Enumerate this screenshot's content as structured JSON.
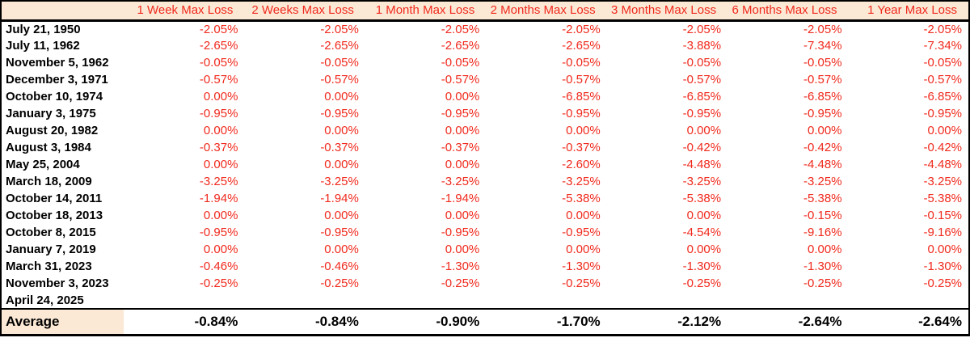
{
  "colors": {
    "header_bg": "#fbe9d6",
    "loss_text": "#f02a1d",
    "border": "#000000"
  },
  "table": {
    "columns": [
      "1 Week Max Loss",
      "2 Weeks Max Loss",
      "1 Month Max Loss",
      "2 Months Max Loss",
      "3 Months Max Loss",
      "6 Months Max Loss",
      "1 Year Max Loss"
    ],
    "rows": [
      {
        "date": "July 21, 1950",
        "values": [
          "-2.05%",
          "-2.05%",
          "-2.05%",
          "-2.05%",
          "-2.05%",
          "-2.05%",
          "-2.05%"
        ]
      },
      {
        "date": "July 11, 1962",
        "values": [
          "-2.65%",
          "-2.65%",
          "-2.65%",
          "-2.65%",
          "-3.88%",
          "-7.34%",
          "-7.34%"
        ]
      },
      {
        "date": "November 5, 1962",
        "values": [
          "-0.05%",
          "-0.05%",
          "-0.05%",
          "-0.05%",
          "-0.05%",
          "-0.05%",
          "-0.05%"
        ]
      },
      {
        "date": "December 3, 1971",
        "values": [
          "-0.57%",
          "-0.57%",
          "-0.57%",
          "-0.57%",
          "-0.57%",
          "-0.57%",
          "-0.57%"
        ]
      },
      {
        "date": "October 10, 1974",
        "values": [
          "0.00%",
          "0.00%",
          "0.00%",
          "-6.85%",
          "-6.85%",
          "-6.85%",
          "-6.85%"
        ]
      },
      {
        "date": "January 3, 1975",
        "values": [
          "-0.95%",
          "-0.95%",
          "-0.95%",
          "-0.95%",
          "-0.95%",
          "-0.95%",
          "-0.95%"
        ]
      },
      {
        "date": "August 20, 1982",
        "values": [
          "0.00%",
          "0.00%",
          "0.00%",
          "0.00%",
          "0.00%",
          "0.00%",
          "0.00%"
        ]
      },
      {
        "date": "August 3, 1984",
        "values": [
          "-0.37%",
          "-0.37%",
          "-0.37%",
          "-0.37%",
          "-0.42%",
          "-0.42%",
          "-0.42%"
        ]
      },
      {
        "date": "May 25, 2004",
        "values": [
          "0.00%",
          "0.00%",
          "0.00%",
          "-2.60%",
          "-4.48%",
          "-4.48%",
          "-4.48%"
        ]
      },
      {
        "date": "March 18, 2009",
        "values": [
          "-3.25%",
          "-3.25%",
          "-3.25%",
          "-3.25%",
          "-3.25%",
          "-3.25%",
          "-3.25%"
        ]
      },
      {
        "date": "October 14, 2011",
        "values": [
          "-1.94%",
          "-1.94%",
          "-1.94%",
          "-5.38%",
          "-5.38%",
          "-5.38%",
          "-5.38%"
        ]
      },
      {
        "date": "October 18, 2013",
        "values": [
          "0.00%",
          "0.00%",
          "0.00%",
          "0.00%",
          "0.00%",
          "-0.15%",
          "-0.15%"
        ]
      },
      {
        "date": "October 8, 2015",
        "values": [
          "-0.95%",
          "-0.95%",
          "-0.95%",
          "-0.95%",
          "-4.54%",
          "-9.16%",
          "-9.16%"
        ]
      },
      {
        "date": "January 7, 2019",
        "values": [
          "0.00%",
          "0.00%",
          "0.00%",
          "0.00%",
          "0.00%",
          "0.00%",
          "0.00%"
        ]
      },
      {
        "date": "March 31, 2023",
        "values": [
          "-0.46%",
          "-0.46%",
          "-1.30%",
          "-1.30%",
          "-1.30%",
          "-1.30%",
          "-1.30%"
        ]
      },
      {
        "date": "November 3, 2023",
        "values": [
          "-0.25%",
          "-0.25%",
          "-0.25%",
          "-0.25%",
          "-0.25%",
          "-0.25%",
          "-0.25%"
        ]
      },
      {
        "date": "April 24, 2025",
        "values": [
          "",
          "",
          "",
          "",
          "",
          "",
          ""
        ]
      }
    ],
    "average": {
      "label": "Average",
      "values": [
        "-0.84%",
        "-0.84%",
        "-0.90%",
        "-1.70%",
        "-2.12%",
        "-2.64%",
        "-2.64%"
      ]
    }
  }
}
